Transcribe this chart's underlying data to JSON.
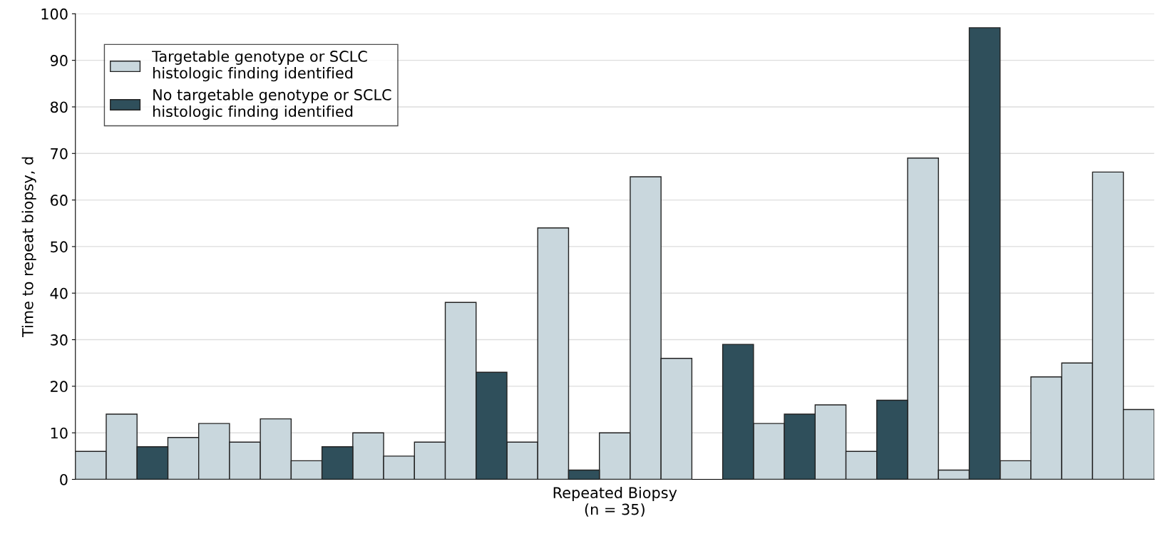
{
  "chart_data": {
    "type": "bar",
    "xlabel": "Repeated Biopsy\n(n = 35)",
    "ylabel": "Time to repeat biopsy, d",
    "categories": [
      null,
      null,
      null,
      null,
      null,
      null,
      null,
      null,
      null,
      null,
      null,
      null,
      null,
      null,
      null,
      null,
      null,
      null,
      null,
      null,
      null,
      null,
      null,
      null,
      null,
      null,
      null,
      null,
      null,
      null,
      null,
      null,
      null,
      null,
      null
    ],
    "series": [
      {
        "name": "Targetable genotype or SCLC\nhistologic finding identified",
        "color": "#c9d7dd",
        "values": [
          6,
          14,
          null,
          9,
          12,
          8,
          13,
          4,
          null,
          10,
          5,
          8,
          38,
          null,
          8,
          54,
          null,
          10,
          65,
          26,
          null,
          null,
          12,
          null,
          16,
          6,
          null,
          69,
          2,
          null,
          4,
          22,
          25,
          66,
          15
        ]
      },
      {
        "name": "No targetable genotype or SCLC\nhistologic finding identified",
        "color": "#2f4f5b",
        "values": [
          null,
          null,
          7,
          null,
          null,
          null,
          null,
          null,
          7,
          null,
          null,
          null,
          null,
          23,
          null,
          null,
          2,
          null,
          null,
          null,
          null,
          29,
          null,
          14,
          null,
          null,
          17,
          null,
          null,
          97,
          null,
          null,
          null,
          null,
          null
        ]
      }
    ],
    "ylim": [
      0,
      100
    ],
    "yticks": [
      0,
      10,
      20,
      30,
      40,
      50,
      60,
      70,
      80,
      90,
      100
    ],
    "grid": "y",
    "legend": "top left"
  }
}
